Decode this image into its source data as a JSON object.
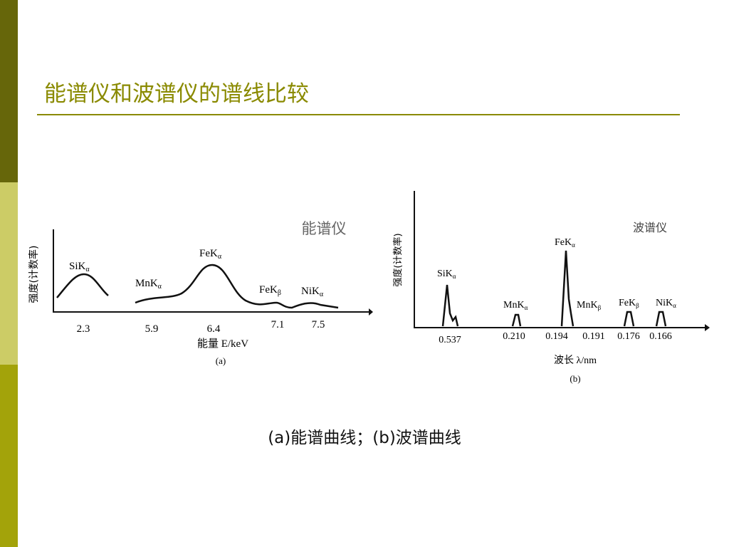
{
  "header": {
    "title": "能谱仪和波谱仪的谱线比较"
  },
  "figures": [
    {
      "name": "能谱仪",
      "y_label": "强度(计数率)",
      "peaks": [
        {
          "label": "SiK",
          "sub": "α"
        },
        {
          "label": "MnK",
          "sub": "α"
        },
        {
          "label": "FeK",
          "sub": "α"
        },
        {
          "label": "FeK",
          "sub": "β"
        },
        {
          "label": "NiK",
          "sub": "α"
        }
      ],
      "ticks": [
        "2.3",
        "5.9",
        "6.4",
        "7.1",
        "7.5"
      ],
      "x_label": "能量 E/keV",
      "tag": "(a)"
    },
    {
      "name": "波谱仪",
      "y_label": "强度(计数率)",
      "peaks": [
        {
          "label": "SiK",
          "sub": "α"
        },
        {
          "label": "MnK",
          "sub": "α"
        },
        {
          "label": "FeK",
          "sub": "α"
        },
        {
          "label": "MnK",
          "sub": "β"
        },
        {
          "label": "FeK",
          "sub": "β"
        },
        {
          "label": "NiK",
          "sub": "α"
        }
      ],
      "ticks": [
        "0.537",
        "0.210",
        "0.194",
        "0.191",
        "0.176",
        "0.166"
      ],
      "x_label": "波长 λ/nm",
      "tag": "(b)"
    }
  ],
  "caption": "(a)能谱曲线；(b)波谱曲线"
}
